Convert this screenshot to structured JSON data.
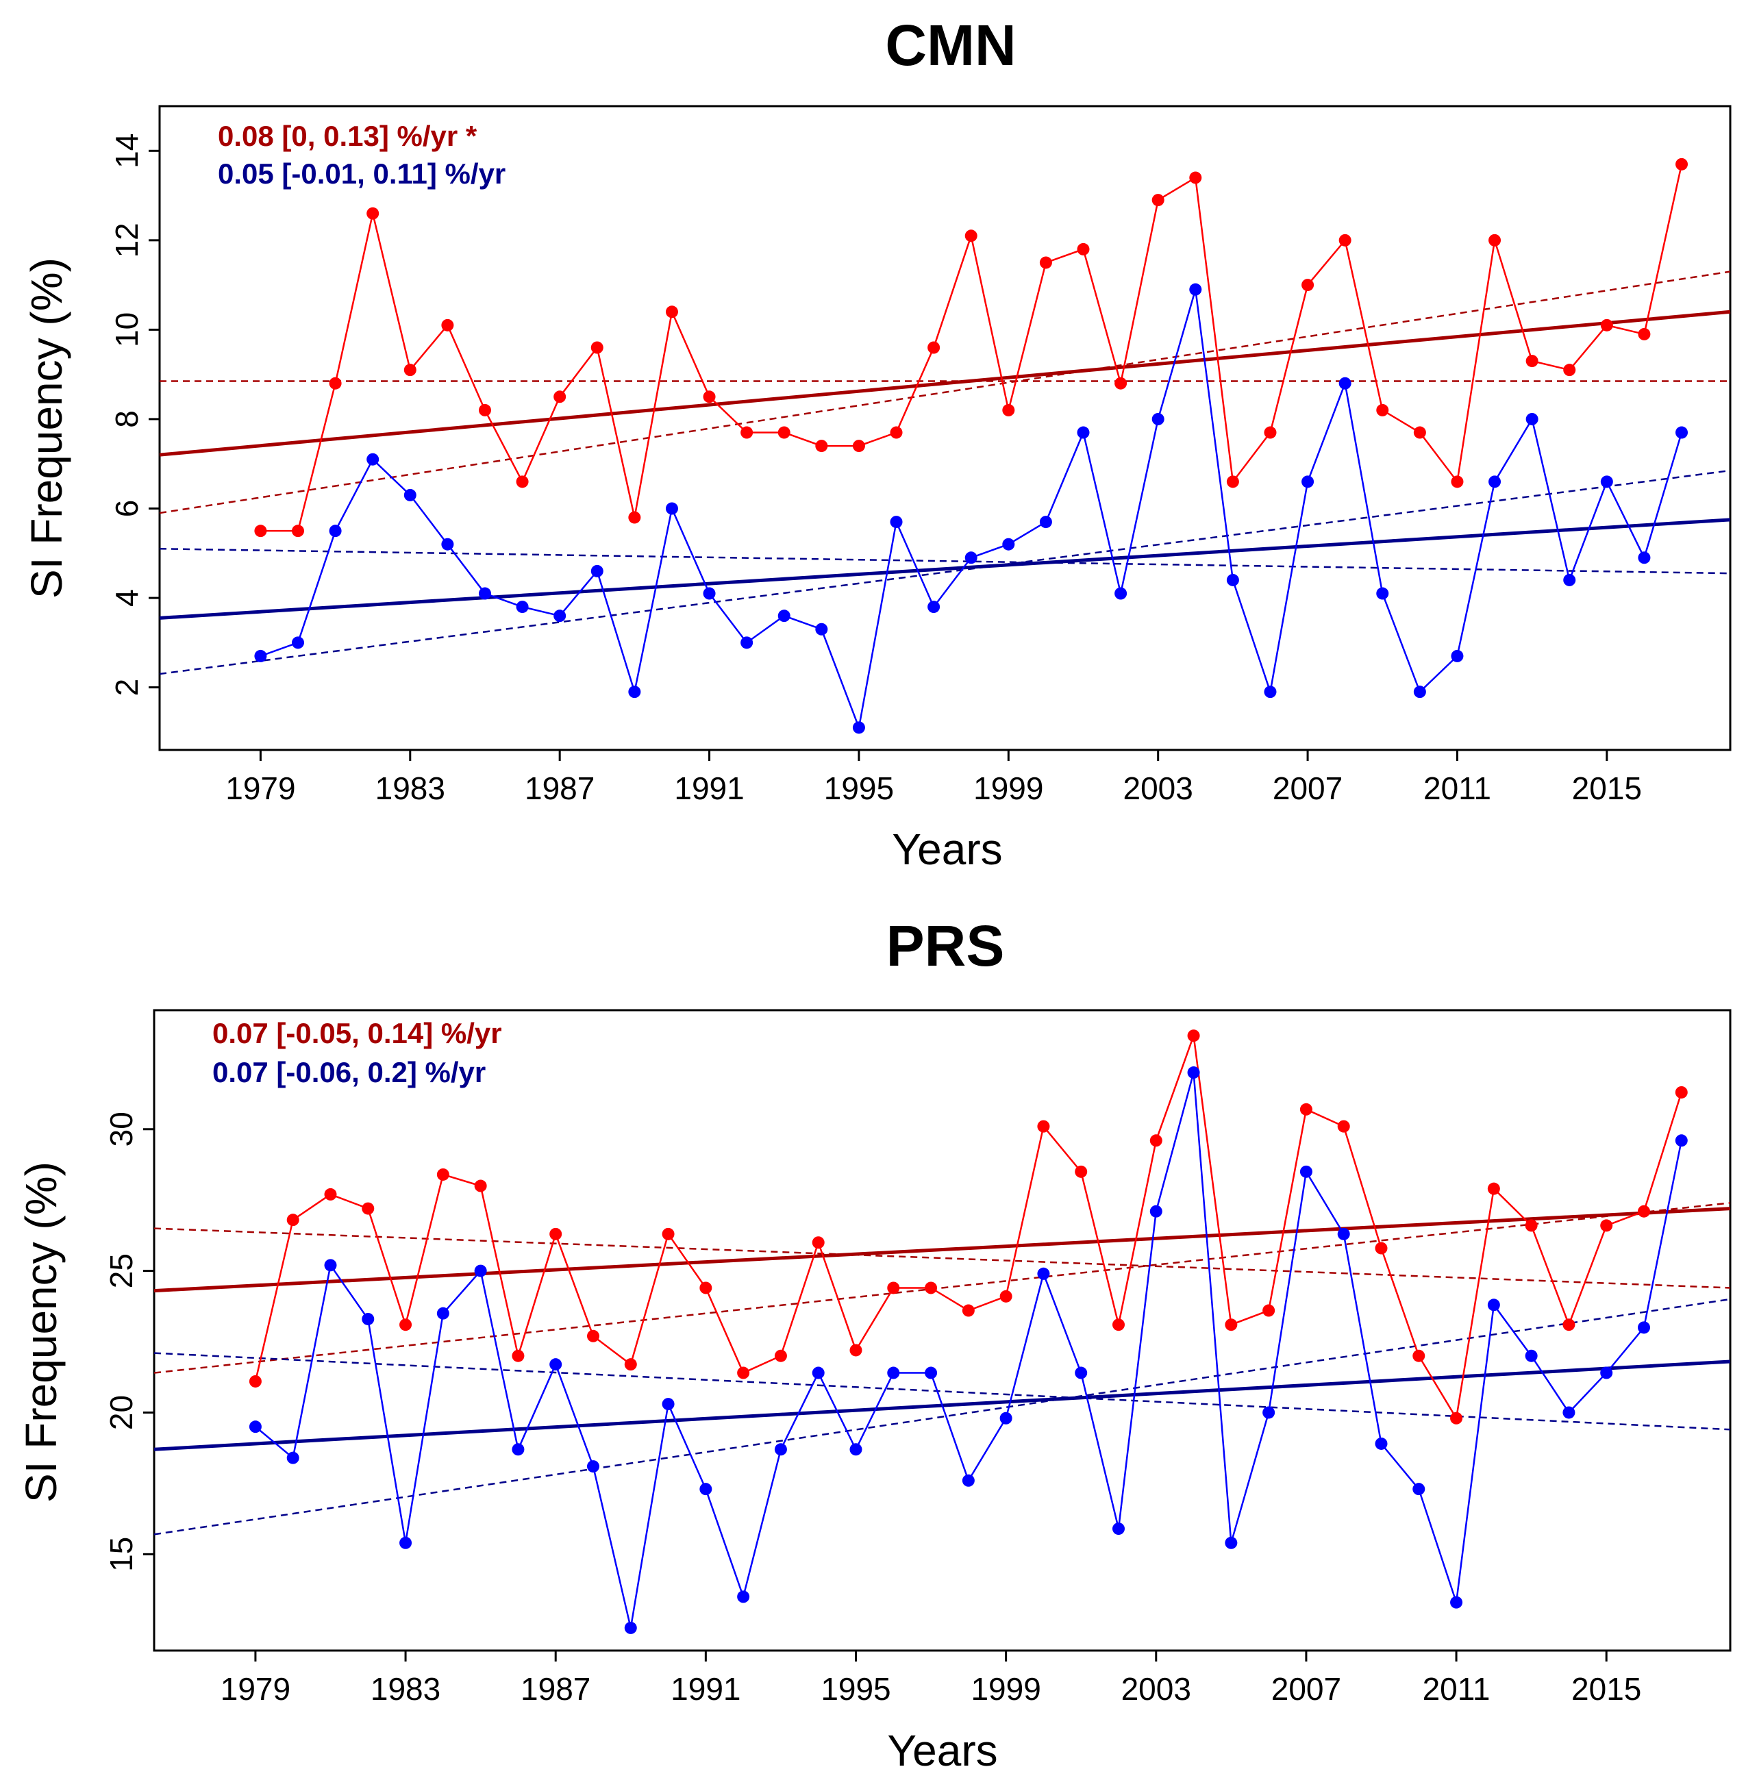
{
  "colors": {
    "series_a": "#ff0000",
    "series_b": "#0000ff",
    "trend_a": "#a50000",
    "trend_b": "#00008b"
  },
  "chart_data": [
    {
      "type": "line",
      "title": "CMN",
      "xlabel": "Years",
      "ylabel": "SI Frequency (%)",
      "xlim": [
        1976.3,
        2018.3
      ],
      "ylim": [
        0.6,
        15.0
      ],
      "xticks": [
        1979,
        1983,
        1987,
        1991,
        1995,
        1999,
        2003,
        2007,
        2011,
        2015
      ],
      "yticks": [
        2,
        4,
        6,
        8,
        10,
        12,
        14
      ],
      "annotations": [
        {
          "text": "0.08 [0, 0.13] %/yr *",
          "color": "#a50000"
        },
        {
          "text": "0.05 [-0.01, 0.11] %/yr",
          "color": "#00008b"
        }
      ],
      "x": [
        1979,
        1980,
        1981,
        1982,
        1983,
        1984,
        1985,
        1986,
        1987,
        1988,
        1989,
        1990,
        1991,
        1992,
        1993,
        1994,
        1995,
        1996,
        1997,
        1998,
        1999,
        2000,
        2001,
        2002,
        2003,
        2004,
        2005,
        2006,
        2007,
        2008,
        2009,
        2010,
        2011,
        2012,
        2013,
        2014,
        2015,
        2016,
        2017
      ],
      "series": [
        {
          "color": "#ff0000",
          "values": [
            5.5,
            5.5,
            8.8,
            12.6,
            9.1,
            10.1,
            8.2,
            6.6,
            8.5,
            9.6,
            5.8,
            10.4,
            8.5,
            7.7,
            7.7,
            7.4,
            7.4,
            7.7,
            9.6,
            12.1,
            8.2,
            11.5,
            11.8,
            8.8,
            12.9,
            13.4,
            6.6,
            7.7,
            11.0,
            12.0,
            8.2,
            7.7,
            6.6,
            12.0,
            9.3,
            9.1,
            10.1,
            9.9,
            13.7
          ]
        },
        {
          "color": "#0000ff",
          "values": [
            2.7,
            3.0,
            5.5,
            7.1,
            6.3,
            5.2,
            4.1,
            3.8,
            3.6,
            4.6,
            1.9,
            6.0,
            4.1,
            3.0,
            3.6,
            3.3,
            1.1,
            5.7,
            3.8,
            4.9,
            5.2,
            5.7,
            7.7,
            4.1,
            8.0,
            10.9,
            4.4,
            1.9,
            6.6,
            8.8,
            4.1,
            1.9,
            2.7,
            6.6,
            8.0,
            4.4,
            6.6,
            4.9,
            7.7
          ]
        }
      ],
      "trend_lines": [
        {
          "color": "#a50000",
          "style": "solid",
          "y_start": 7.2,
          "y_end": 10.4
        },
        {
          "color": "#a50000",
          "style": "dashed",
          "y_start": 8.85,
          "y_end": 8.85
        },
        {
          "color": "#a50000",
          "style": "dashed",
          "y_start": 5.9,
          "y_end": 11.3
        },
        {
          "color": "#00008b",
          "style": "solid",
          "y_start": 3.55,
          "y_end": 5.75
        },
        {
          "color": "#00008b",
          "style": "dashed",
          "y_start": 5.1,
          "y_end": 4.55
        },
        {
          "color": "#00008b",
          "style": "dashed",
          "y_start": 2.3,
          "y_end": 6.85
        }
      ]
    },
    {
      "type": "line",
      "title": "PRS",
      "xlabel": "Years",
      "ylabel": "SI Frequency (%)",
      "xlim": [
        1976.3,
        2018.3
      ],
      "ylim": [
        11.6,
        34.2
      ],
      "xticks": [
        1979,
        1983,
        1987,
        1991,
        1995,
        1999,
        2003,
        2007,
        2011,
        2015
      ],
      "yticks": [
        15,
        20,
        25,
        30
      ],
      "annotations": [
        {
          "text": "0.07 [-0.05, 0.14] %/yr",
          "color": "#a50000"
        },
        {
          "text": "0.07 [-0.06, 0.2] %/yr",
          "color": "#00008b"
        }
      ],
      "x": [
        1979,
        1980,
        1981,
        1982,
        1983,
        1984,
        1985,
        1986,
        1987,
        1988,
        1989,
        1990,
        1991,
        1992,
        1993,
        1994,
        1995,
        1996,
        1997,
        1998,
        1999,
        2000,
        2001,
        2002,
        2003,
        2004,
        2005,
        2006,
        2007,
        2008,
        2009,
        2010,
        2011,
        2012,
        2013,
        2014,
        2015,
        2016,
        2017
      ],
      "series": [
        {
          "color": "#ff0000",
          "values": [
            21.1,
            26.8,
            27.7,
            27.2,
            23.1,
            28.4,
            28.0,
            22.0,
            26.3,
            22.7,
            21.7,
            26.3,
            24.4,
            21.4,
            22.0,
            26.0,
            22.2,
            24.4,
            24.4,
            23.6,
            24.1,
            30.1,
            28.5,
            23.1,
            29.6,
            33.3,
            23.1,
            23.6,
            30.7,
            30.1,
            25.8,
            22.0,
            19.8,
            27.9,
            26.6,
            23.1,
            26.6,
            27.1,
            31.3
          ]
        },
        {
          "color": "#0000ff",
          "values": [
            19.5,
            18.4,
            25.2,
            23.3,
            15.4,
            23.5,
            25.0,
            18.7,
            21.7,
            18.1,
            12.4,
            20.3,
            17.3,
            13.5,
            18.7,
            21.4,
            18.7,
            21.4,
            21.4,
            17.6,
            19.8,
            24.9,
            21.4,
            15.9,
            27.1,
            32.0,
            15.4,
            20.0,
            28.5,
            26.3,
            18.9,
            17.3,
            13.3,
            23.8,
            22.0,
            20.0,
            21.4,
            23.0,
            29.6
          ]
        }
      ],
      "trend_lines": [
        {
          "color": "#a50000",
          "style": "solid",
          "y_start": 24.3,
          "y_end": 27.2
        },
        {
          "color": "#a50000",
          "style": "dashed",
          "y_start": 26.5,
          "y_end": 24.4
        },
        {
          "color": "#a50000",
          "style": "dashed",
          "y_start": 21.4,
          "y_end": 27.4
        },
        {
          "color": "#00008b",
          "style": "solid",
          "y_start": 18.7,
          "y_end": 21.8
        },
        {
          "color": "#00008b",
          "style": "dashed",
          "y_start": 22.1,
          "y_end": 19.4
        },
        {
          "color": "#00008b",
          "style": "dashed",
          "y_start": 15.7,
          "y_end": 24.0
        }
      ]
    }
  ]
}
